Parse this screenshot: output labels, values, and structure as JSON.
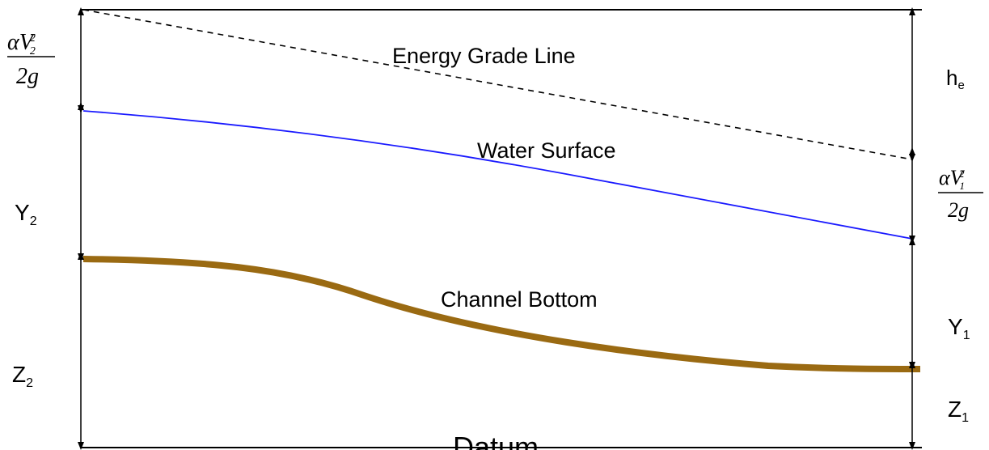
{
  "labels": {
    "energy_grade_line": "Energy Grade Line",
    "water_surface": "Water Surface",
    "channel_bottom": "Channel Bottom",
    "datum": "Datum"
  },
  "left_dimensions": {
    "velocity_head_2": {
      "numerator": "αV",
      "subscript": "2",
      "superscript": "2",
      "denominator": "2g"
    },
    "depth_2": {
      "base": "Y",
      "subscript": "2"
    },
    "elevation_2": {
      "base": "Z",
      "subscript": "2"
    }
  },
  "right_dimensions": {
    "energy_loss": {
      "base": "h",
      "subscript": "e"
    },
    "velocity_head_1": {
      "numerator": "αV",
      "subscript": "1",
      "superscript": "2",
      "denominator": "2g"
    },
    "depth_1": {
      "base": "Y",
      "subscript": "1"
    },
    "elevation_1": {
      "base": "Z",
      "subscript": "1"
    }
  },
  "colors": {
    "energy_grade_line": "#000000",
    "water_surface": "#1a1aff",
    "channel_bottom": "#9a6a12",
    "frame": "#000000"
  },
  "line_styles": {
    "energy_grade_line": "dashed",
    "water_surface": "solid",
    "channel_bottom": "solid-thick"
  }
}
